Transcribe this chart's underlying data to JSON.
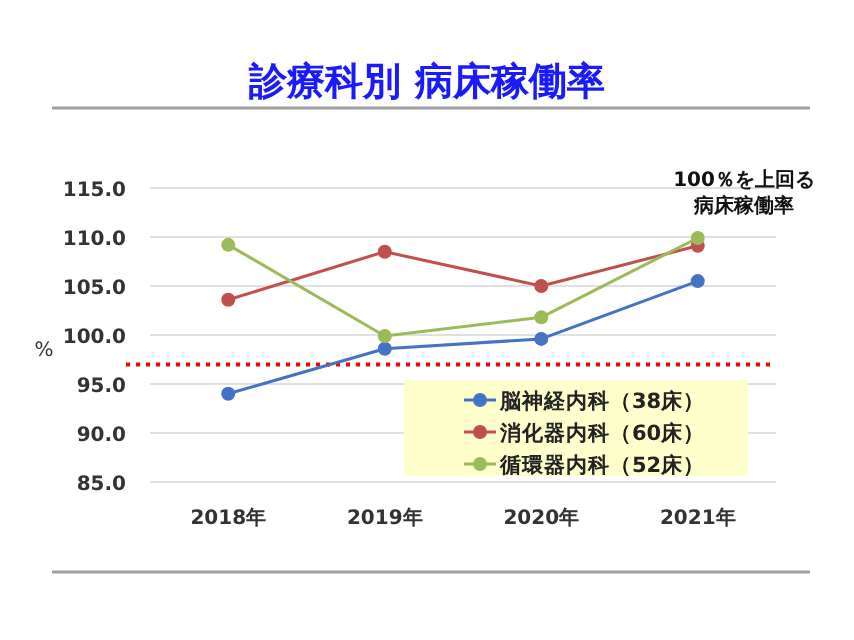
{
  "chart_data": {
    "type": "line",
    "title": "診療科別 病床稼働率",
    "ylabel": "%",
    "categories": [
      "2018年",
      "2019年",
      "2020年",
      "2021年"
    ],
    "series": [
      {
        "name": "脳神経内科（38床）",
        "color": "#4472c4",
        "values": [
          94.0,
          98.6,
          99.6,
          105.5
        ]
      },
      {
        "name": "消化器内科（60床）",
        "color": "#c0504d",
        "values": [
          103.6,
          108.5,
          105.0,
          109.1
        ]
      },
      {
        "name": "循環器内科（52床）",
        "color": "#9bbb59",
        "values": [
          109.2,
          99.9,
          101.8,
          109.9
        ]
      }
    ],
    "ylim": [
      85,
      115
    ],
    "yticks": [
      {
        "value": 85,
        "label": "85.0"
      },
      {
        "value": 90,
        "label": "90.0"
      },
      {
        "value": 95,
        "label": "95.0"
      },
      {
        "value": 100,
        "label": "100.0"
      },
      {
        "value": 105,
        "label": "105.0"
      },
      {
        "value": 110,
        "label": "110.0"
      },
      {
        "value": 115,
        "label": "115.0"
      }
    ],
    "ref_lines": [
      {
        "axis": "y",
        "value": 97,
        "color": "#ff0000",
        "line_style": "dotted"
      }
    ],
    "annotations": [
      "100％を上回る",
      "病床稼働率"
    ],
    "grid": "y",
    "legend": "bottom right",
    "marker": "circle",
    "line_style": "solid"
  }
}
